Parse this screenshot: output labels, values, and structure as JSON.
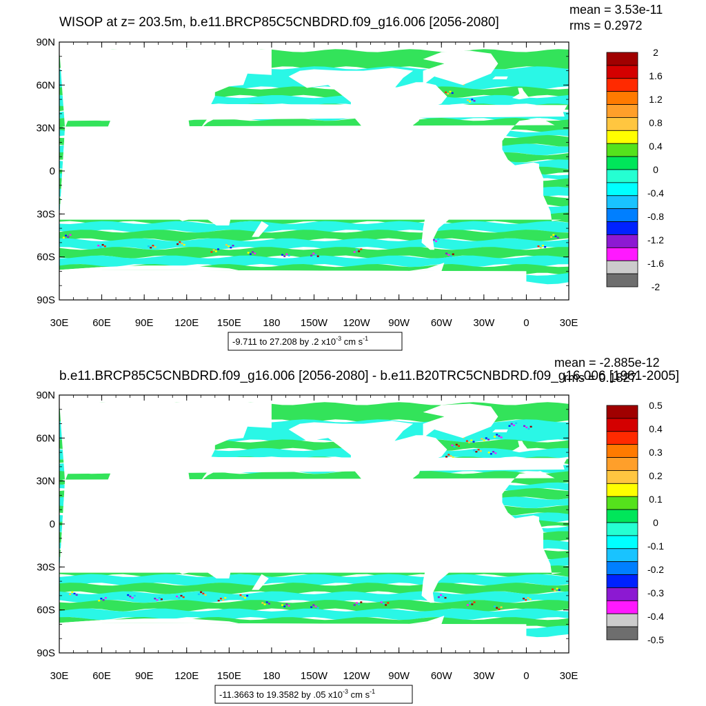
{
  "panels": [
    {
      "title": "WISOP at z= 203.5m, b.e11.BRCP85C5CNBDRD.f09_g16.006 [2056-2080]",
      "mean": "mean = 3.53e-11",
      "rms": "rms = 0.2972",
      "units_range": "-9.711 to 27.208 by .2 x10",
      "units_exp": "-3",
      "units_unit": " cm s",
      "units_unit_exp": "-1",
      "colorbar_labels": [
        "2",
        "1.6",
        "1.2",
        "0.8",
        "0.4",
        "0",
        "-0.4",
        "-0.8",
        "-1.2",
        "-1.6",
        "-2"
      ]
    },
    {
      "title": "b.e11.BRCP85C5CNBDRD.f09_g16.006 [2056-2080] - b.e11.B20TRC5CNBDRD.f09_g16.006 [1981-2005]",
      "mean": "mean = -2.885e-12",
      "rms": "rms = 0.1827",
      "units_range": "-11.3663 to 19.3582 by .05 x10",
      "units_exp": "-3",
      "units_unit": " cm s",
      "units_unit_exp": "-1",
      "colorbar_labels": [
        "0.5",
        "0.4",
        "0.3",
        "0.2",
        "0.1",
        "0",
        "-0.1",
        "-0.2",
        "-0.3",
        "-0.4",
        "-0.5"
      ]
    }
  ],
  "axes": {
    "lat_labels": [
      "90N",
      "60N",
      "30N",
      "0",
      "30S",
      "60S",
      "90S"
    ],
    "lon_labels": [
      "30E",
      "60E",
      "90E",
      "120E",
      "150E",
      "180",
      "150W",
      "120W",
      "90W",
      "60W",
      "30W",
      "0",
      "30E"
    ]
  },
  "colors": {
    "colorbar_bands": [
      "#a00000",
      "#d40000",
      "#ff2a00",
      "#ff7a00",
      "#ff9f2a",
      "#ffc640",
      "#ffff00",
      "#55e21c",
      "#00e65a",
      "#25ffd2",
      "#00ffff",
      "#19c3ff",
      "#007fff",
      "#0022ff",
      "#8c19d2",
      "#ff19ff",
      "#cccccc",
      "#6e6e6e"
    ],
    "ocean_green": "#33e35a",
    "ocean_cyan": "#2af7e6"
  }
}
